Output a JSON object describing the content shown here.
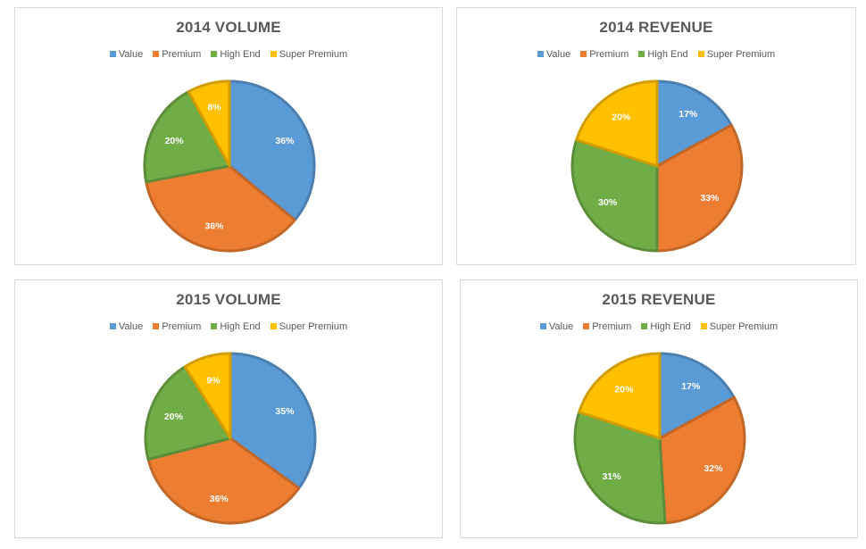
{
  "colors": {
    "value": "#5b9bd5",
    "premium": "#ed7d31",
    "high_end": "#70ad47",
    "super_premium": "#ffc000"
  },
  "chart_data": [
    {
      "type": "pie",
      "title": "2014 VOLUME",
      "legend": "top",
      "categories": [
        "Value",
        "Premium",
        "High End",
        "Super Premium"
      ],
      "values": [
        36,
        36,
        20,
        8
      ],
      "labels": [
        "36%",
        "36%",
        "20%",
        "8%"
      ]
    },
    {
      "type": "pie",
      "title": "2014 REVENUE",
      "legend": "top",
      "categories": [
        "Value",
        "Premium",
        "High End",
        "Super Premium"
      ],
      "values": [
        17,
        33,
        30,
        20
      ],
      "labels": [
        "17%",
        "33%",
        "30%",
        "20%"
      ]
    },
    {
      "type": "pie",
      "title": "2015 VOLUME",
      "legend": "top",
      "categories": [
        "Value",
        "Premium",
        "High End",
        "Super Premium"
      ],
      "values": [
        35,
        36,
        20,
        9
      ],
      "labels": [
        "35%",
        "36%",
        "20%",
        "9%"
      ]
    },
    {
      "type": "pie",
      "title": "2015 REVENUE",
      "legend": "top",
      "categories": [
        "Value",
        "Premium",
        "High End",
        "Super Premium"
      ],
      "values": [
        17,
        32,
        31,
        20
      ],
      "labels": [
        "17%",
        "32%",
        "31%",
        "20%"
      ]
    }
  ]
}
